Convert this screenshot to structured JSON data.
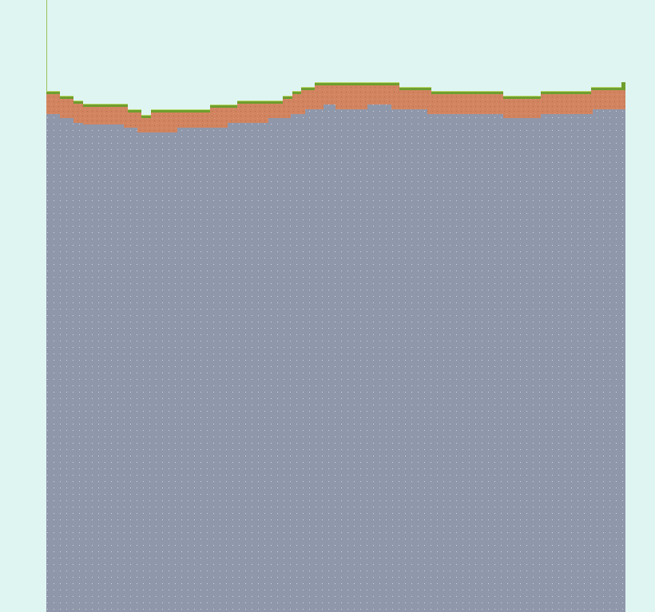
{
  "scene": {
    "type": "side-view terrain",
    "colors": {
      "sky": "#dff5f2",
      "grass": "#6f9e2e",
      "grass_highlight": "#b7d86a",
      "dirt": "#d1845f",
      "dirt_speck": "#b86a4b",
      "stone": "#8f97ab",
      "stone_speck": "#cfd4df",
      "boundary_line": "#9cc25a"
    },
    "layers": [
      "sky",
      "grass",
      "dirt",
      "stone"
    ]
  }
}
